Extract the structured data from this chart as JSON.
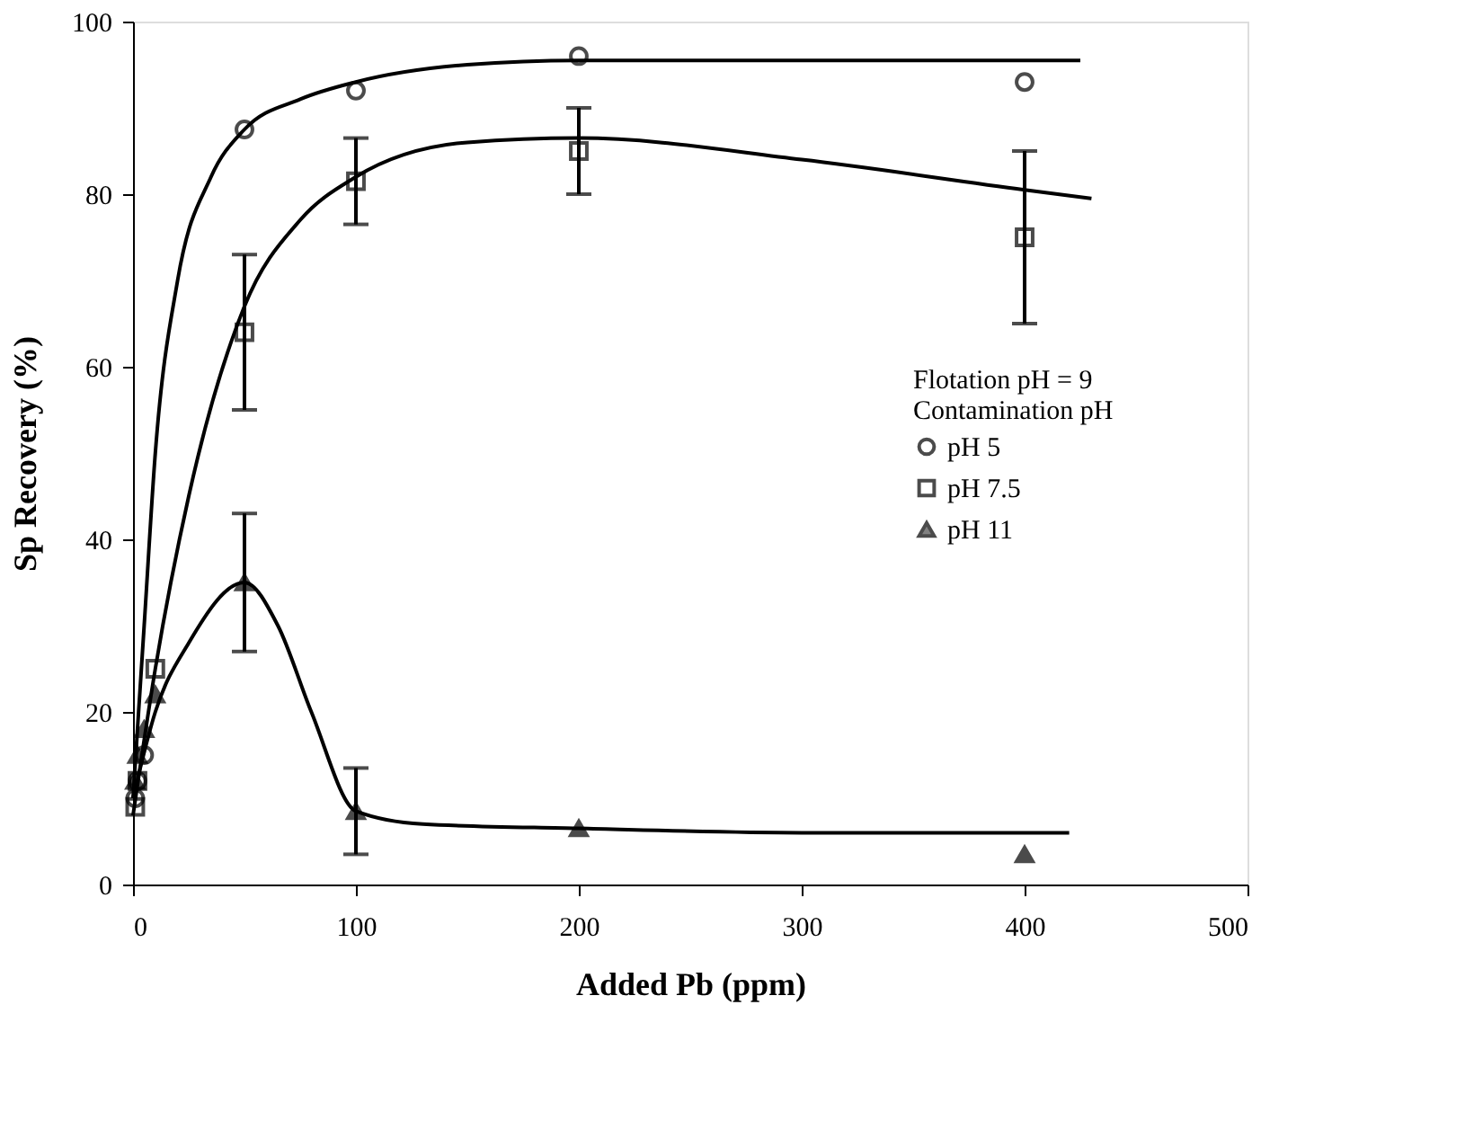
{
  "chart_data": {
    "type": "scatter",
    "xlabel": "Added Pb (ppm)",
    "ylabel": "Sp Recovery (%)",
    "legend_title": "Flotation pH = 9\nContamination pH",
    "xlim": [
      0,
      500
    ],
    "xticks": [
      0,
      100,
      200,
      300,
      400,
      500
    ],
    "ylim": [
      0,
      100
    ],
    "yticks": [
      0,
      20,
      40,
      60,
      80,
      100
    ],
    "grid": false,
    "legend": "right",
    "series": [
      {
        "name": "pH 5",
        "marker": "circle",
        "color": "#000000",
        "x": [
          1,
          2,
          5,
          50,
          100,
          200,
          400
        ],
        "values": [
          10,
          12,
          15,
          87.5,
          92,
          96,
          93
        ]
      },
      {
        "name": "pH 7.5",
        "marker": "square",
        "color": "#000000",
        "x": [
          1,
          2,
          5,
          10,
          50,
          100,
          200,
          400
        ],
        "values": [
          9,
          12,
          null,
          25,
          64,
          81.5,
          85,
          75
        ],
        "errors": [
          null,
          null,
          null,
          null,
          9,
          5,
          5,
          10
        ]
      },
      {
        "name": "pH 11",
        "marker": "triangle",
        "color": "#000000",
        "x": [
          1,
          2,
          5,
          10,
          50,
          100,
          200,
          400
        ],
        "values": [
          12,
          15,
          18,
          22,
          35,
          8.5,
          6.5,
          3.5
        ],
        "errors": [
          null,
          null,
          null,
          null,
          8,
          5,
          null,
          null
        ]
      },
      {
        "type": "line",
        "marker": "none",
        "color": "#000000",
        "x": [
          0,
          5,
          10,
          20,
          35,
          50,
          75,
          100,
          150,
          200,
          300,
          425
        ],
        "values": [
          10,
          30,
          50,
          70,
          82,
          87.5,
          91,
          93,
          95,
          95.5,
          95.5,
          95.5
        ]
      },
      {
        "type": "line",
        "marker": "none",
        "color": "#000000",
        "x": [
          0,
          10,
          25,
          50,
          75,
          100,
          150,
          200,
          300,
          400,
          430
        ],
        "values": [
          8,
          25,
          45,
          67,
          77,
          82,
          86,
          86.5,
          84,
          80.5,
          79.5
        ]
      },
      {
        "type": "line",
        "marker": "none",
        "color": "#000000",
        "x": [
          0,
          10,
          25,
          50,
          65,
          80,
          100,
          130,
          200,
          300,
          420
        ],
        "values": [
          10,
          20,
          28,
          35,
          30,
          20,
          8.5,
          7,
          6.5,
          6,
          6
        ]
      }
    ]
  }
}
